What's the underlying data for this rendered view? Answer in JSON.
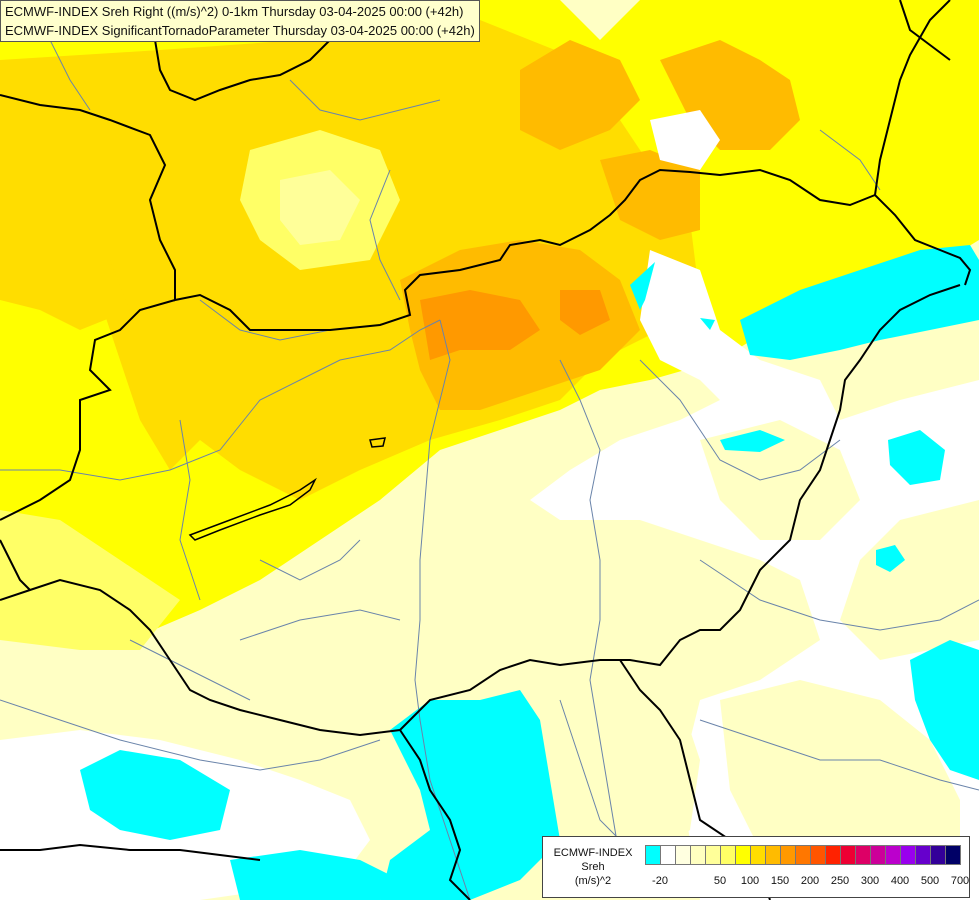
{
  "titles": [
    "ECMWF-INDEX Sreh Right ((m/s)^2) 0-1km Thursday 03-04-2025 00:00 (+42h)",
    "ECMWF-INDEX SignificantTornadoParameter Thursday 03-04-2025 00:00 (+42h)"
  ],
  "legend": {
    "model": "ECMWF-INDEX",
    "parameter": "Sreh",
    "unit": "(m/s)^2",
    "colors": [
      "#00ffff",
      "#ffffff",
      "#ffffe0",
      "#ffffc0",
      "#ffff99",
      "#ffff66",
      "#ffff00",
      "#ffdd00",
      "#ffbb00",
      "#ff9900",
      "#ff7700",
      "#ff5500",
      "#ff2200",
      "#ee0033",
      "#dd0066",
      "#cc0099",
      "#bb00cc",
      "#9900ee",
      "#6600cc",
      "#330099",
      "#000066"
    ],
    "tick_labels": [
      "-20",
      "50",
      "100",
      "150",
      "200",
      "250",
      "300",
      "400",
      "500",
      "700"
    ]
  }
}
